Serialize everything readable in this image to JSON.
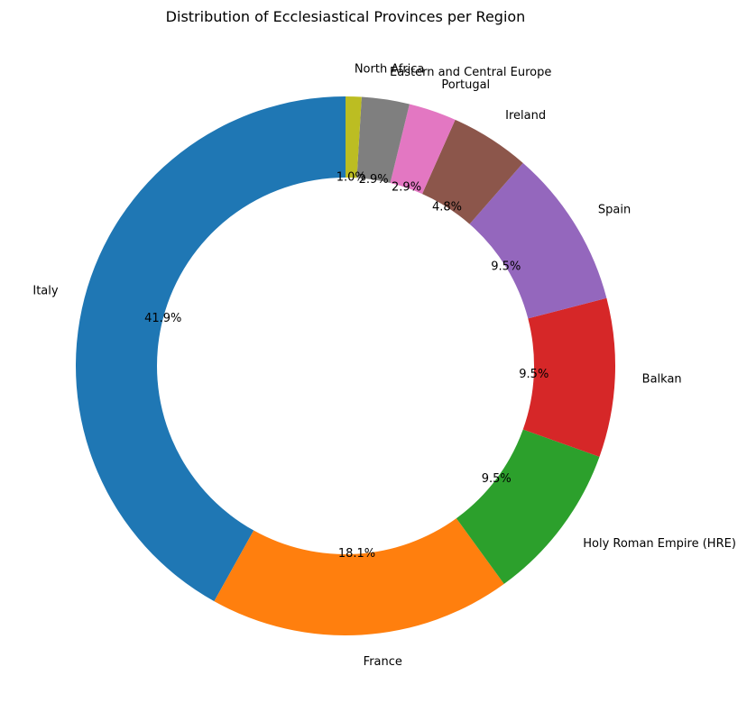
{
  "chart_data": {
    "type": "pie",
    "donut": true,
    "title": "Distribution of Ecclesiastical Provinces per Region",
    "start_angle_deg": 90,
    "direction": "counterclockwise",
    "slices": [
      {
        "label": "Italy",
        "percent_label": "41.9%",
        "value": 44,
        "color": "#1f77b4"
      },
      {
        "label": "France",
        "percent_label": "18.1%",
        "value": 19,
        "color": "#ff7f0e"
      },
      {
        "label": "Holy Roman Empire (HRE)",
        "percent_label": "9.5%",
        "value": 10,
        "color": "#2ca02c"
      },
      {
        "label": "Balkan",
        "percent_label": "9.5%",
        "value": 10,
        "color": "#d62728"
      },
      {
        "label": "Spain",
        "percent_label": "9.5%",
        "value": 10,
        "color": "#9467bd"
      },
      {
        "label": "Ireland",
        "percent_label": "4.8%",
        "value": 5,
        "color": "#8c564b"
      },
      {
        "label": "Portugal",
        "percent_label": "2.9%",
        "value": 3,
        "color": "#e377c2"
      },
      {
        "label": "Eastern and Central Europe",
        "percent_label": "2.9%",
        "value": 3,
        "color": "#7f7f7f"
      },
      {
        "label": "North Africa",
        "percent_label": "1.0%",
        "value": 1,
        "color": "#bcbd22"
      }
    ]
  }
}
